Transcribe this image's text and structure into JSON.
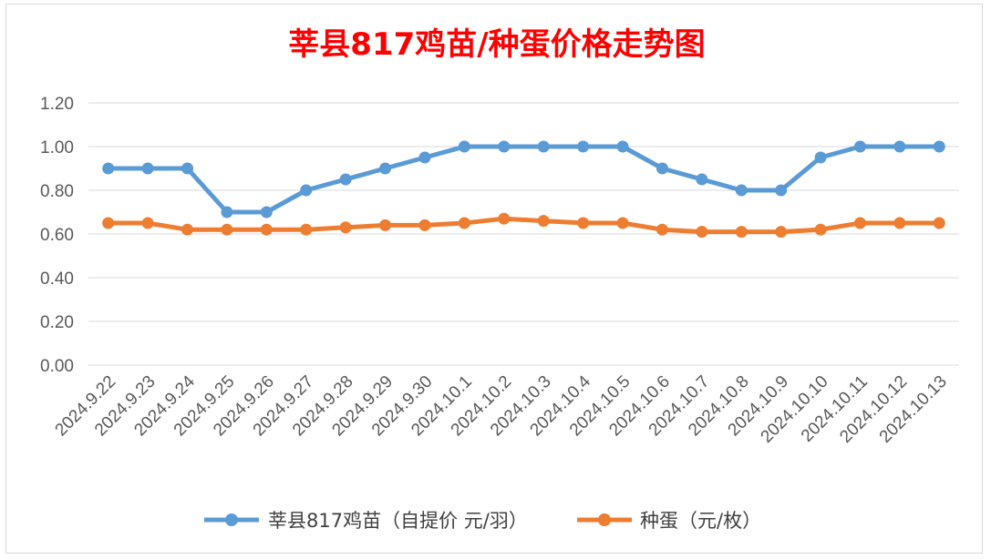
{
  "chart_data": {
    "type": "line",
    "title": "莘县817鸡苗/种蛋价格走势图",
    "xlabel": "",
    "ylabel": "",
    "ylim": [
      0,
      1.2
    ],
    "y_ticks": [
      "0.00",
      "0.20",
      "0.40",
      "0.60",
      "0.80",
      "1.00",
      "1.20"
    ],
    "grid": true,
    "legend_position": "bottom",
    "categories": [
      "2024.9.22",
      "2024.9.23",
      "2024.9.24",
      "2024.9.25",
      "2024.9.26",
      "2024.9.27",
      "2024.9.28",
      "2024.9.29",
      "2024.9.30",
      "2024.10.1",
      "2024.10.2",
      "2024.10.3",
      "2024.10.4",
      "2024.10.5",
      "2024.10.6",
      "2024.10.7",
      "2024.10.8",
      "2024.10.9",
      "2024.10.10",
      "2024.10.11",
      "2024.10.12",
      "2024.10.13"
    ],
    "series": [
      {
        "name": "莘县817鸡苗（自提价 元/羽）",
        "color": "#5b9bd5",
        "values": [
          0.9,
          0.9,
          0.9,
          0.7,
          0.7,
          0.8,
          0.85,
          0.9,
          0.95,
          1.0,
          1.0,
          1.0,
          1.0,
          1.0,
          0.9,
          0.85,
          0.8,
          0.8,
          0.95,
          1.0,
          1.0,
          1.0
        ]
      },
      {
        "name": "种蛋（元/枚）",
        "color": "#ed7d31",
        "values": [
          0.65,
          0.65,
          0.62,
          0.62,
          0.62,
          0.62,
          0.63,
          0.64,
          0.64,
          0.65,
          0.67,
          0.66,
          0.65,
          0.65,
          0.62,
          0.61,
          0.61,
          0.61,
          0.62,
          0.65,
          0.65,
          0.65
        ]
      }
    ],
    "title_color": "#ff0000"
  }
}
